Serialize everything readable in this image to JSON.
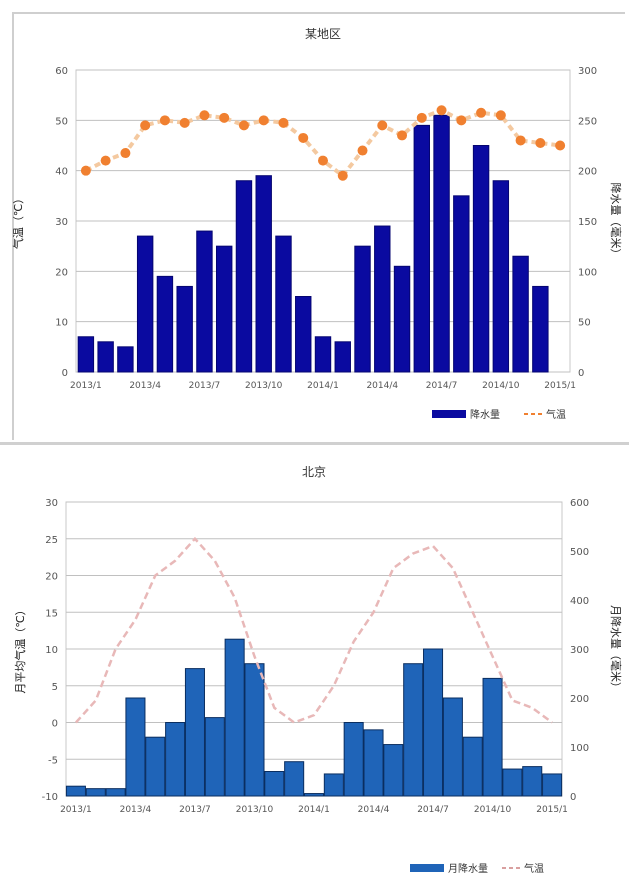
{
  "chart_data": [
    {
      "type": "bar",
      "title": "某地区",
      "ylabel": "气温（℃）",
      "y2label": "降水量（毫米）",
      "ylim": [
        0,
        60
      ],
      "y2lim": [
        0,
        300
      ],
      "yticks": [
        "0",
        "10",
        "20",
        "30",
        "40",
        "50",
        "60"
      ],
      "y2ticks": [
        "0",
        "50",
        "100",
        "150",
        "200",
        "250",
        "300"
      ],
      "categories": [
        "2013/1",
        "2013/2",
        "2013/3",
        "2013/4",
        "2013/5",
        "2013/6",
        "2013/7",
        "2013/8",
        "2013/9",
        "2013/10",
        "2013/11",
        "2013/12",
        "2014/1",
        "2014/2",
        "2014/3",
        "2014/4",
        "2014/5",
        "2014/6",
        "2014/7",
        "2014/8",
        "2014/9",
        "2014/10",
        "2014/11",
        "2014/12",
        "2015/1"
      ],
      "xtick_labels": [
        "2013/1",
        "2013/4",
        "2013/7",
        "2013/10",
        "2014/1",
        "2014/4",
        "2014/7",
        "2014/10",
        "2015/1"
      ],
      "xtick_indices": [
        0,
        3,
        6,
        9,
        12,
        15,
        18,
        21,
        24
      ],
      "series": [
        {
          "name": "降水量",
          "kind": "bar",
          "axis": "right",
          "color": "#0a0aa0",
          "values": [
            35,
            30,
            25,
            135,
            95,
            85,
            140,
            125,
            190,
            195,
            135,
            75,
            35,
            30,
            125,
            145,
            105,
            245,
            255,
            175,
            225,
            190,
            115,
            85,
            0
          ]
        },
        {
          "name": "气温",
          "kind": "line-marker",
          "axis": "left",
          "color": "#f08030",
          "values": [
            40,
            42,
            43.5,
            49,
            50,
            49.5,
            51,
            50.5,
            49,
            50,
            49.5,
            46.5,
            42,
            39,
            44,
            49,
            47,
            50.5,
            52,
            50,
            51.5,
            51,
            46,
            45.5,
            45
          ]
        }
      ],
      "legend_position": "bottom-right",
      "grid": true
    },
    {
      "type": "bar",
      "title": "北京",
      "ylabel": "月平均气温（℃）",
      "y2label": "月降水量（毫米）",
      "ylim": [
        -10,
        30
      ],
      "y2lim": [
        0,
        600
      ],
      "yticks": [
        "-10",
        "-5",
        "0",
        "5",
        "10",
        "15",
        "20",
        "25",
        "30"
      ],
      "y2ticks": [
        "0",
        "100",
        "200",
        "300",
        "400",
        "500",
        "600"
      ],
      "categories": [
        "2013/1",
        "2013/2",
        "2013/3",
        "2013/4",
        "2013/5",
        "2013/6",
        "2013/7",
        "2013/8",
        "2013/9",
        "2013/10",
        "2013/11",
        "2013/12",
        "2014/1",
        "2014/2",
        "2014/3",
        "2014/4",
        "2014/5",
        "2014/6",
        "2014/7",
        "2014/8",
        "2014/9",
        "2014/10",
        "2014/11",
        "2014/12",
        "2015/1"
      ],
      "xtick_labels": [
        "2013/1",
        "2013/4",
        "2013/7",
        "2013/10",
        "2014/1",
        "2014/4",
        "2014/7",
        "2014/10",
        "2015/1"
      ],
      "xtick_indices": [
        0,
        3,
        6,
        9,
        12,
        15,
        18,
        21,
        24
      ],
      "series": [
        {
          "name": "月降水量",
          "kind": "bar",
          "axis": "right",
          "color": "#1f64b8",
          "values": [
            20,
            15,
            15,
            200,
            120,
            150,
            260,
            160,
            320,
            270,
            50,
            70,
            5,
            45,
            150,
            135,
            105,
            270,
            300,
            200,
            120,
            240,
            55,
            60,
            45
          ]
        },
        {
          "name": "气温",
          "kind": "line",
          "axis": "left",
          "color": "#e8b8b8",
          "values": [
            0,
            3,
            10,
            14,
            20,
            22,
            25,
            22,
            17,
            9,
            2,
            0,
            1,
            5,
            11,
            15,
            21,
            23,
            24,
            21,
            15,
            9,
            3,
            2,
            0
          ]
        }
      ],
      "legend_position": "bottom-right",
      "grid": true
    }
  ]
}
